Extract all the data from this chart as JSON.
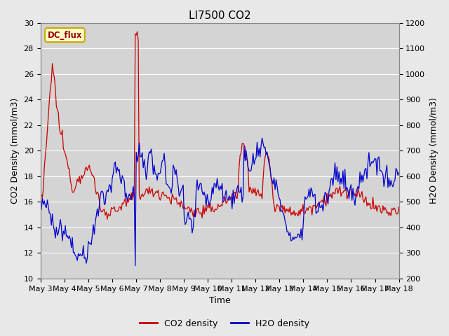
{
  "title": "LI7500 CO2",
  "xlabel": "Time",
  "ylabel_left": "CO2 Density (mmol/m3)",
  "ylabel_right": "H2O Density (mmol/m3)",
  "ylim_left": [
    10,
    30
  ],
  "ylim_right": [
    200,
    1200
  ],
  "yticks_left": [
    10,
    12,
    14,
    16,
    18,
    20,
    22,
    24,
    26,
    28,
    30
  ],
  "yticks_right": [
    200,
    300,
    400,
    500,
    600,
    700,
    800,
    900,
    1000,
    1100,
    1200
  ],
  "xtick_labels": [
    "May 3",
    "May 4",
    "May 5",
    "May 6",
    "May 7",
    "May 8",
    "May 9",
    "May 10",
    "May 11",
    "May 12",
    "May 13",
    "May 14",
    "May 15",
    "May 16",
    "May 17",
    "May 18"
  ],
  "co2_color": "#cc0000",
  "h2o_color": "#0000cc",
  "bg_color": "#e8e8e8",
  "plot_bg_color": "#d4d4d4",
  "legend_box_color": "#ffffcc",
  "legend_box_edge": "#ccaa00",
  "legend_text": "DC_flux",
  "legend_text_color": "#990000",
  "title_fontsize": 11,
  "axis_label_fontsize": 9,
  "tick_fontsize": 8
}
